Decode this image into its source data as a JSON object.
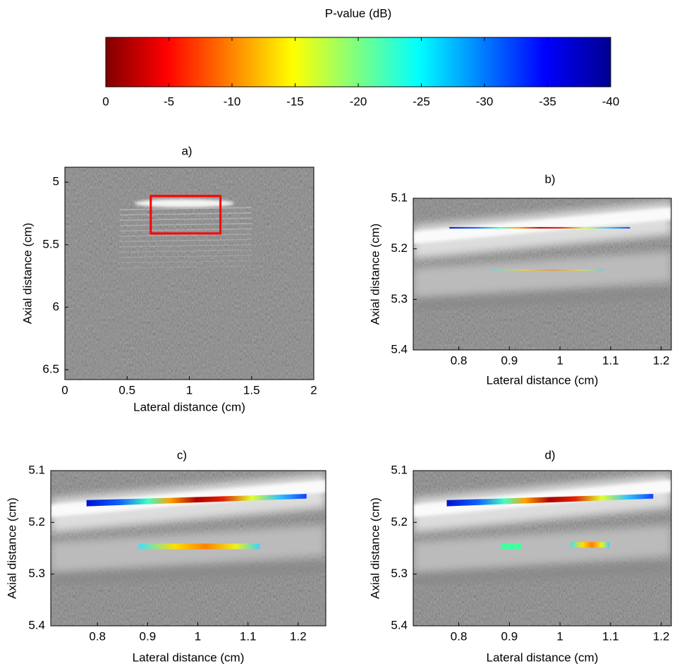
{
  "chart_data": [
    {
      "type": "colorbar",
      "title": "P-value (dB)",
      "colormap": "jet",
      "xlim": [
        0,
        -40
      ],
      "xticks": [
        0,
        -5,
        -10,
        -15,
        -20,
        -25,
        -30,
        -35,
        -40
      ]
    },
    {
      "type": "image",
      "title": "a)",
      "x_label": "Lateral distance (cm)",
      "y_label": "Axial distance (cm)",
      "xlim": [
        0,
        2
      ],
      "ylim": [
        4.88,
        6.58
      ],
      "xticks": [
        0,
        0.5,
        1,
        1.5,
        2
      ],
      "yticks": [
        5,
        5.5,
        6,
        6.5
      ],
      "roi": {
        "xlim": [
          0.69,
          1.25
        ],
        "ylim": [
          5.11,
          5.41
        ],
        "color": "#ff0000"
      }
    },
    {
      "type": "image",
      "title": "b)",
      "x_label": "Lateral distance (cm)",
      "y_label": "Axial distance (cm)",
      "xlim": [
        0.71,
        1.22
      ],
      "ylim": [
        5.1,
        5.4
      ],
      "xticks": [
        0.8,
        0.9,
        1,
        1.1,
        1.2
      ],
      "yticks": [
        5.1,
        5.2,
        5.3,
        5.4
      ]
    },
    {
      "type": "image",
      "title": "c)",
      "x_label": "Lateral distance (cm)",
      "y_label": "Axial distance (cm)",
      "xlim": [
        0.707,
        1.255
      ],
      "ylim": [
        5.1,
        5.4
      ],
      "xticks": [
        0.8,
        0.9,
        1,
        1.1,
        1.2
      ],
      "yticks": [
        5.1,
        5.2,
        5.3,
        5.4
      ]
    },
    {
      "type": "image",
      "title": "d)",
      "x_label": "Lateral distance (cm)",
      "y_label": "Axial distance (cm)",
      "xlim": [
        0.71,
        1.22
      ],
      "ylim": [
        5.1,
        5.4
      ],
      "xticks": [
        0.8,
        0.9,
        1,
        1.1,
        1.2
      ],
      "yticks": [
        5.1,
        5.2,
        5.3,
        5.4
      ]
    }
  ]
}
